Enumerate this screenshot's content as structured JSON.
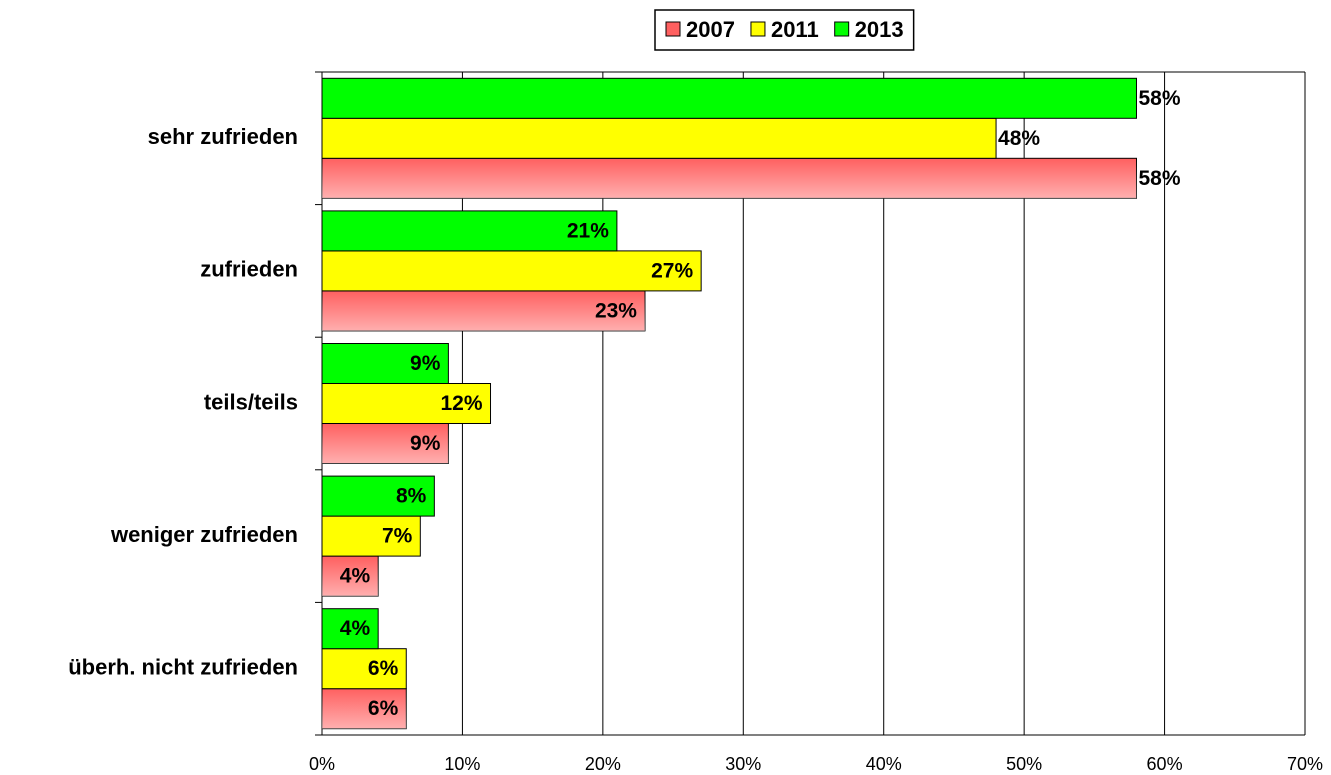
{
  "chart_data": {
    "type": "hbar",
    "categories": [
      "sehr zufrieden",
      "zufrieden",
      "teils/teils",
      "weniger zufrieden",
      "überh. nicht zufrieden"
    ],
    "series": [
      {
        "name": "2007",
        "color": "#ff6060",
        "values": [
          58,
          23,
          9,
          4,
          6
        ],
        "value_labels": [
          "58%",
          "23%",
          "9%",
          "4%",
          "6%"
        ]
      },
      {
        "name": "2011",
        "color": "#ffff00",
        "values": [
          48,
          27,
          12,
          7,
          6
        ],
        "value_labels": [
          "48%",
          "27%",
          "12%",
          "7%",
          "6%"
        ]
      },
      {
        "name": "2013",
        "color": "#00ff00",
        "values": [
          58,
          21,
          9,
          8,
          4
        ],
        "value_labels": [
          "58%",
          "21%",
          "9%",
          "8%",
          "4%"
        ]
      }
    ],
    "xlim": [
      0,
      70
    ],
    "xticks": [
      {
        "value": 0,
        "label": "0%"
      },
      {
        "value": 10,
        "label": "10%"
      },
      {
        "value": 20,
        "label": "20%"
      },
      {
        "value": 30,
        "label": "30%"
      },
      {
        "value": 40,
        "label": "40%"
      },
      {
        "value": 50,
        "label": "50%"
      },
      {
        "value": 60,
        "label": "60%"
      },
      {
        "value": 70,
        "label": "70%"
      }
    ],
    "grid": true,
    "legend": "top"
  }
}
